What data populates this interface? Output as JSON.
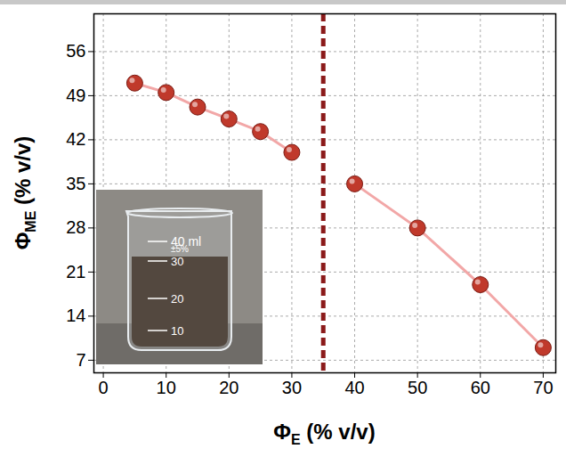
{
  "chart_data": {
    "type": "scatter",
    "x_label": {
      "symbol": "Φ",
      "subscript": "E",
      "unit": "(% v/v)"
    },
    "y_label": {
      "symbol": "Φ",
      "subscript": "ME",
      "unit": "(% v/v)"
    },
    "series": [
      {
        "color": "#c0392b",
        "line_color": "#f2a7a7",
        "marker": "sphere",
        "line_style": "solid",
        "x": [
          5,
          10,
          15,
          20,
          25,
          30
        ],
        "values": [
          51,
          49.5,
          47.2,
          45.3,
          43.3,
          40
        ]
      },
      {
        "color": "#c0392b",
        "line_color": "#f2a7a7",
        "marker": "sphere",
        "line_style": "solid",
        "x": [
          40,
          50,
          60,
          70
        ],
        "values": [
          35,
          28,
          19,
          9
        ]
      }
    ],
    "vline": {
      "x": 35,
      "color": "#8b1a1a",
      "line_style": "dashed"
    },
    "xlim": [
      -1.5,
      72
    ],
    "xticks": [
      0,
      10,
      20,
      30,
      40,
      50,
      60,
      70
    ],
    "ylim": [
      5,
      62
    ],
    "yticks": [
      7,
      14,
      21,
      28,
      35,
      42,
      49,
      56
    ],
    "grid": true,
    "inset": {
      "type": "photo",
      "labels": [
        "40 ml",
        "±5%",
        "30",
        "20",
        "10"
      ]
    }
  }
}
